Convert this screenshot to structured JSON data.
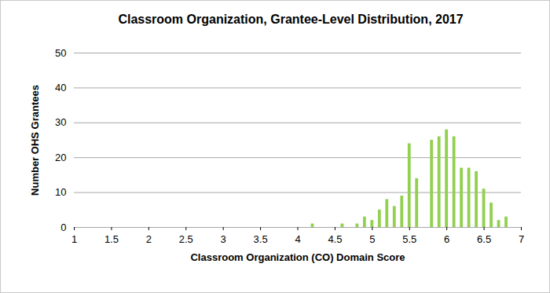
{
  "chart_data": {
    "type": "bar",
    "title": "Classroom Organization, Grantee-Level Distribution, 2017",
    "x_label": "Classroom Organization (CO) Domain Score",
    "y_label": "Number OHS Grantees",
    "x": [
      4.2,
      4.6,
      4.8,
      4.9,
      5.0,
      5.1,
      5.2,
      5.3,
      5.4,
      5.5,
      5.6,
      5.8,
      5.9,
      6.0,
      6.1,
      6.2,
      6.3,
      6.4,
      6.5,
      6.6,
      6.7,
      6.8
    ],
    "values": [
      1,
      1,
      1,
      3,
      2,
      5,
      8,
      6,
      9,
      24,
      14,
      25,
      26,
      28,
      26,
      17,
      17,
      16,
      11,
      7,
      2,
      3
    ],
    "color": "#92d050",
    "xlim": [
      1,
      7
    ],
    "xticks": [
      1,
      1.5,
      2,
      2.5,
      3,
      3.5,
      4,
      4.5,
      5,
      5.5,
      6,
      6.5,
      7
    ],
    "ylim": [
      0,
      50
    ],
    "yticks": [
      0,
      10,
      20,
      30,
      40,
      50
    ],
    "grid": true
  }
}
